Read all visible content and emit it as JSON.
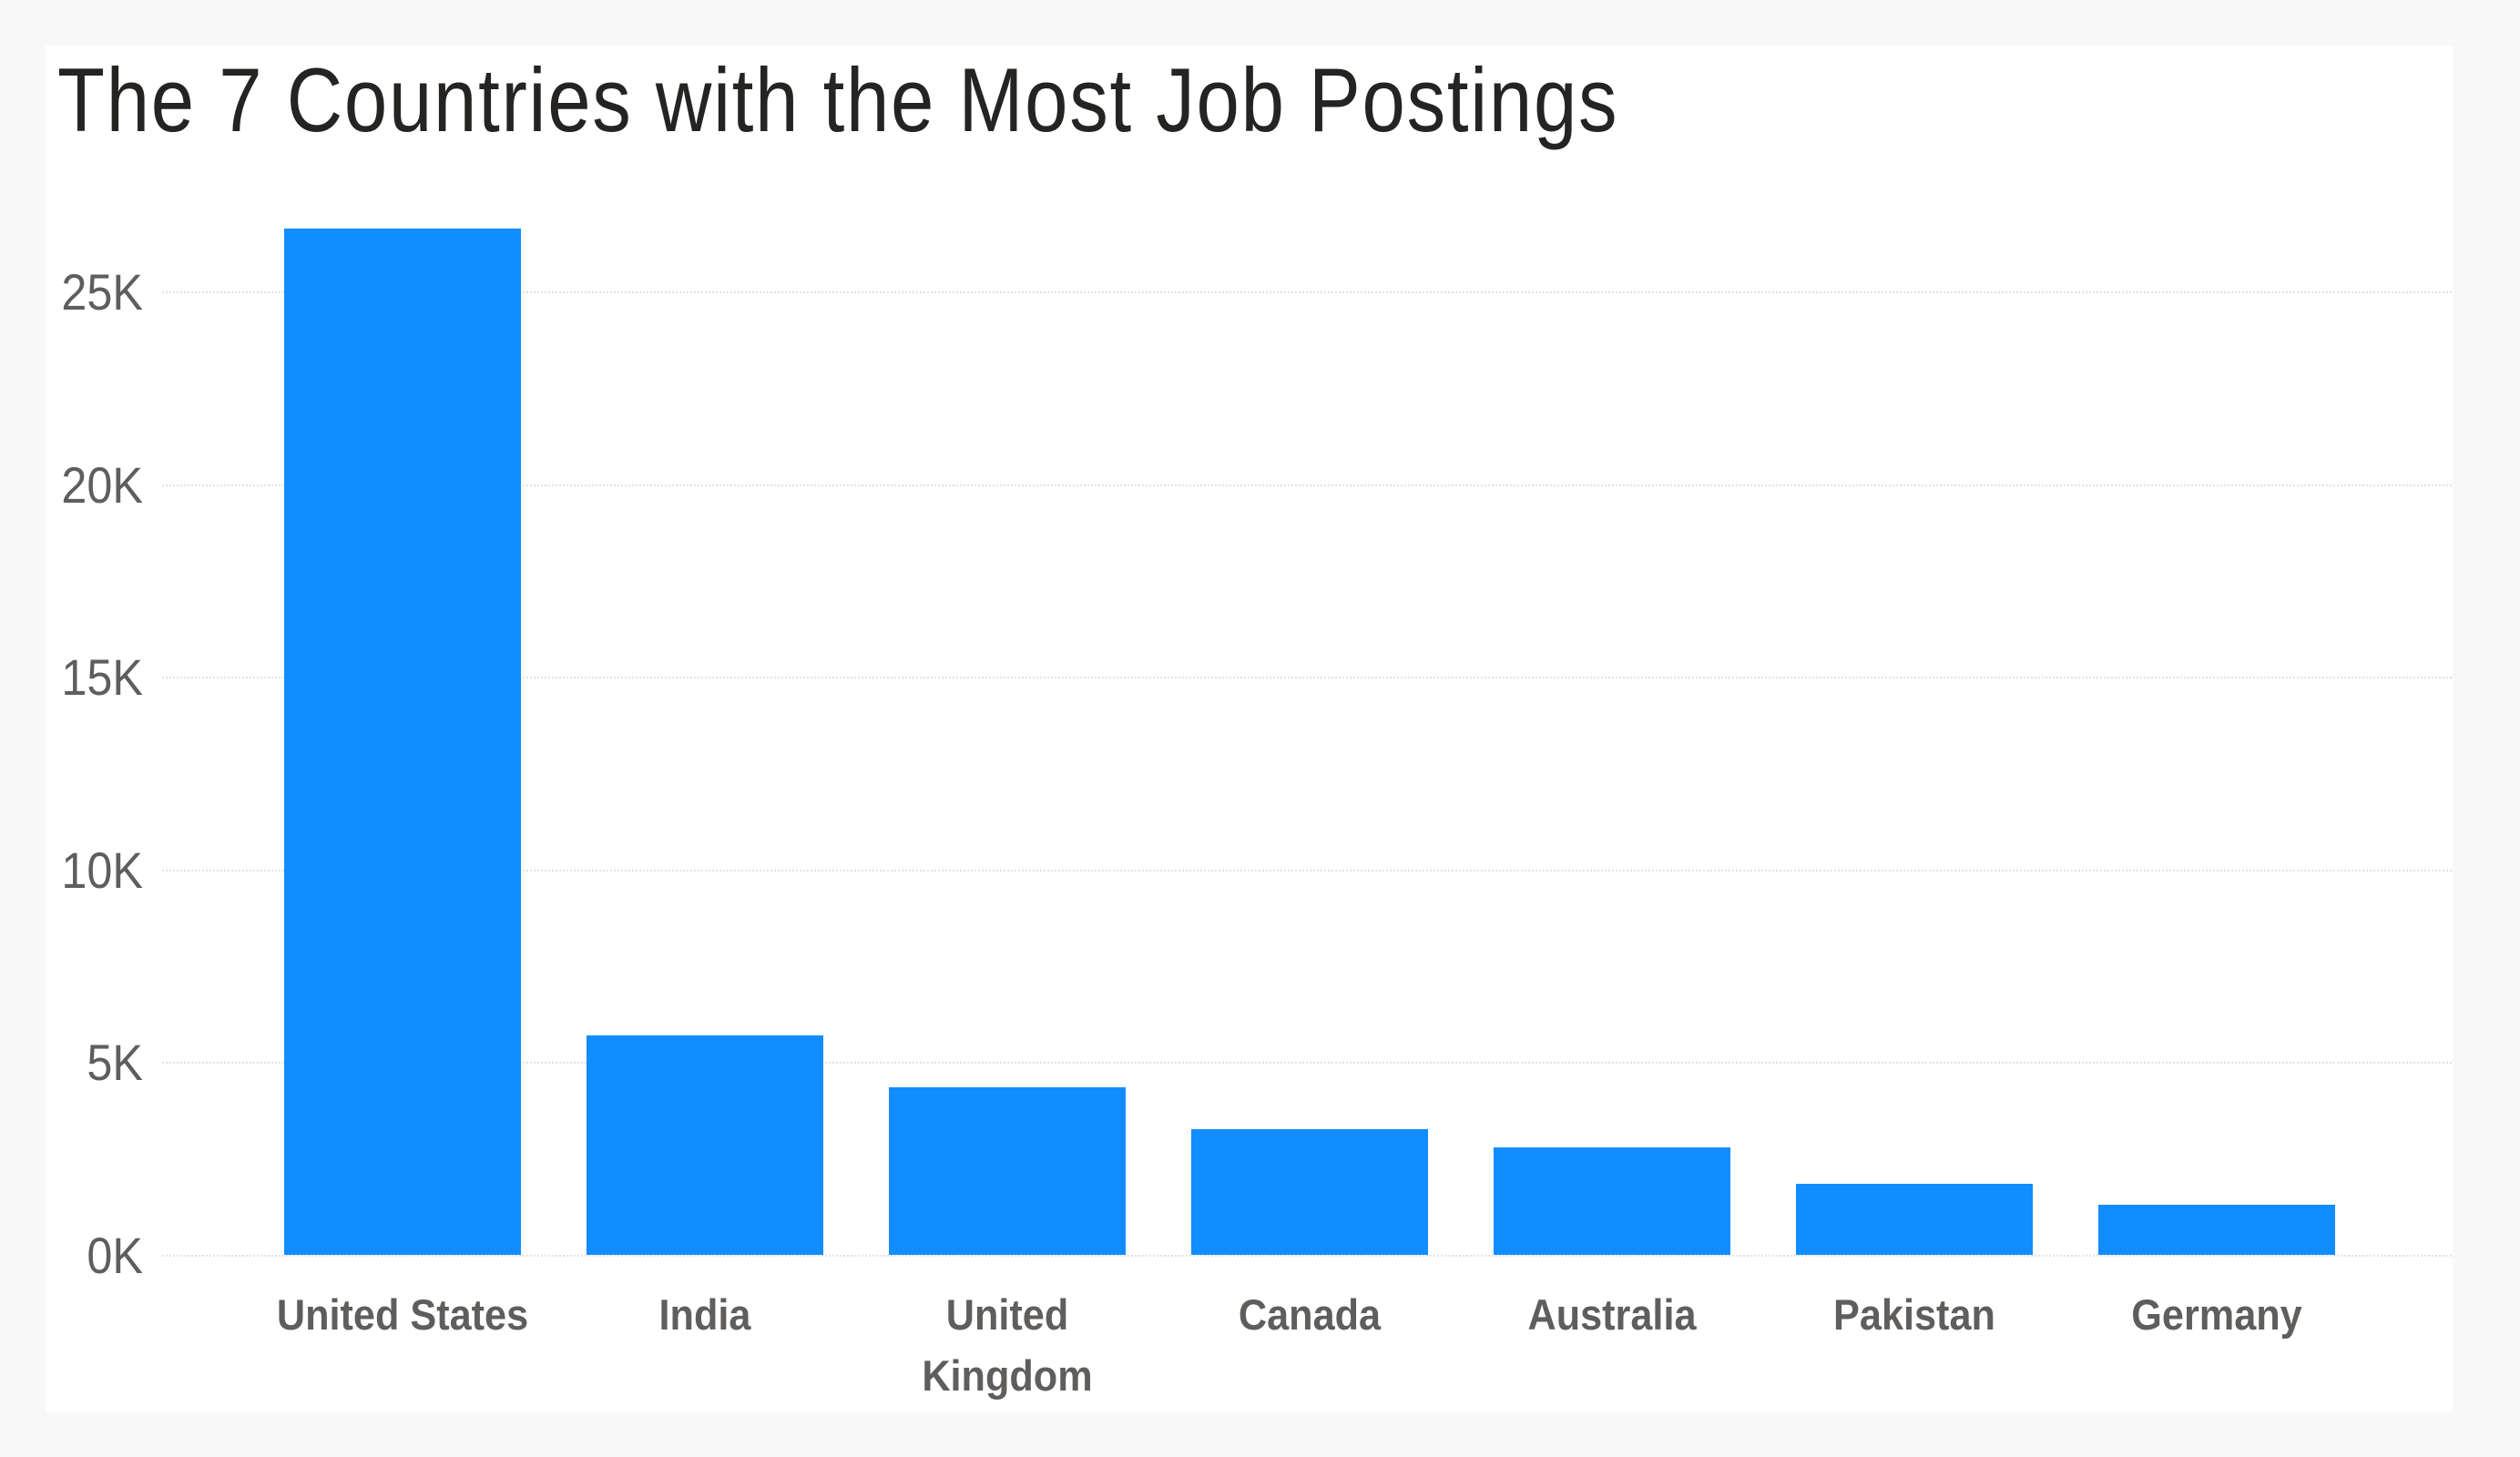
{
  "chart_data": {
    "type": "bar",
    "title": "The 7 Countries with the Most Job Postings",
    "xlabel": "",
    "ylabel": "",
    "categories": [
      "United States",
      "India",
      "United Kingdom",
      "Canada",
      "Australia",
      "Pakistan",
      "Germany"
    ],
    "category_display": [
      [
        "United States"
      ],
      [
        "India"
      ],
      [
        "United",
        "Kingdom"
      ],
      [
        "Canada"
      ],
      [
        "Australia"
      ],
      [
        "Pakistan"
      ],
      [
        "Germany"
      ]
    ],
    "values": [
      26650,
      5730,
      4360,
      3280,
      2810,
      1860,
      1320
    ],
    "ylim": [
      0,
      27000
    ],
    "yticks": [
      0,
      5000,
      10000,
      15000,
      20000,
      25000
    ],
    "ytick_labels": [
      "0K",
      "5K",
      "10K",
      "15K",
      "20K",
      "25K"
    ],
    "grid": true,
    "grid_style": "dotted",
    "legend": "none",
    "bar_color": "#118DFF"
  },
  "colors": {
    "background": "#F8F8F8",
    "card": "#FFFFFF",
    "title": "#252423",
    "axis_text": "#605E5C",
    "bar": "#118DFF",
    "grid": "#E1E1E1"
  }
}
